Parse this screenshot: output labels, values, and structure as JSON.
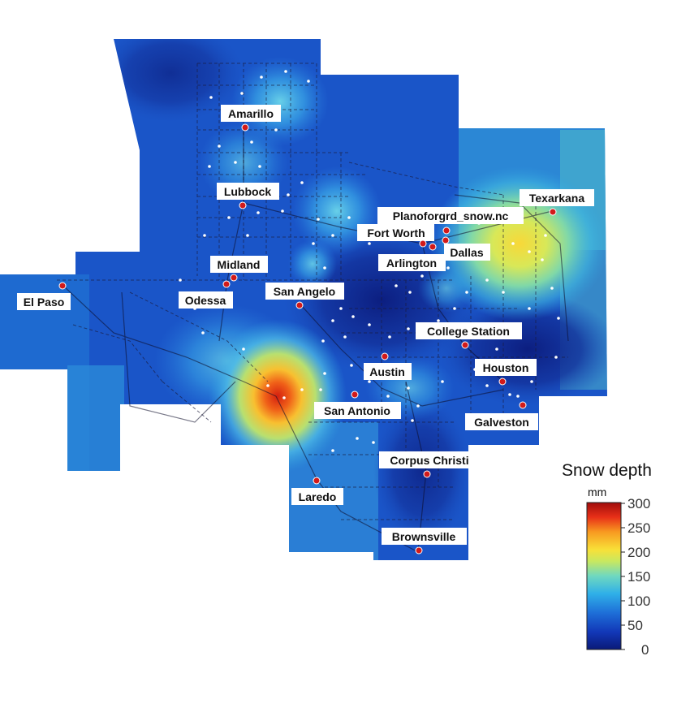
{
  "legend": {
    "title": "Snow depth",
    "unit": "mm",
    "ticks": [
      "300",
      "250",
      "200",
      "150",
      "100",
      "50",
      "0"
    ],
    "colormap": [
      "#0a1a78",
      "#1238b8",
      "#1e6fd8",
      "#2fb0e8",
      "#6fd8c0",
      "#c8e860",
      "#f8e038",
      "#f89a20",
      "#e83018",
      "#a00c0c"
    ]
  },
  "cities": [
    {
      "id": "amarillo",
      "name": "Amarillo"
    },
    {
      "id": "lubbock",
      "name": "Lubbock"
    },
    {
      "id": "midland",
      "name": "Midland"
    },
    {
      "id": "odessa",
      "name": "Odessa"
    },
    {
      "id": "el-paso",
      "name": "El Paso"
    },
    {
      "id": "san-angelo",
      "name": "San Angelo"
    },
    {
      "id": "texarkana",
      "name": "Texarkana"
    },
    {
      "id": "plano",
      "name": "Planoforgrd_snow.nc"
    },
    {
      "id": "fort-worth",
      "name": "Fort Worth"
    },
    {
      "id": "dallas",
      "name": "Dallas"
    },
    {
      "id": "arlington",
      "name": "Arlington"
    },
    {
      "id": "college-station",
      "name": "College Station"
    },
    {
      "id": "austin",
      "name": "Austin"
    },
    {
      "id": "houston",
      "name": "Houston"
    },
    {
      "id": "san-antonio",
      "name": "San Antonio"
    },
    {
      "id": "galveston",
      "name": "Galveston"
    },
    {
      "id": "corpus-christi",
      "name": "Corpus Christi"
    },
    {
      "id": "laredo",
      "name": "Laredo"
    },
    {
      "id": "brownsville",
      "name": "Brownsville"
    }
  ]
}
